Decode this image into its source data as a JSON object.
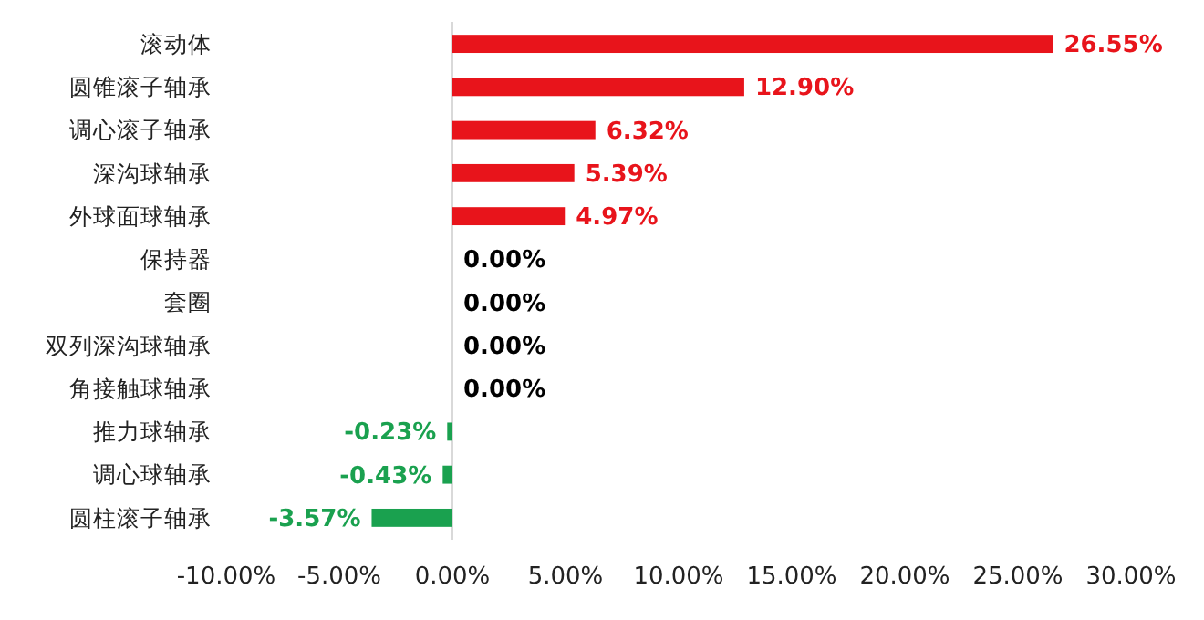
{
  "chart_data": {
    "type": "bar",
    "orientation": "horizontal",
    "categories": [
      "滚动体",
      "圆锥滚子轴承",
      "调心滚子轴承",
      "深沟球轴承",
      "外球面球轴承",
      "保持器",
      "套圈",
      "双列深沟球轴承",
      "角接触球轴承",
      "推力球轴承",
      "调心球轴承",
      "圆柱滚子轴承"
    ],
    "values": [
      26.55,
      12.9,
      6.32,
      5.39,
      4.97,
      0,
      0,
      0,
      0,
      -0.23,
      -0.43,
      -3.57
    ],
    "value_labels": [
      "26.55%",
      "12.90%",
      "6.32%",
      "5.39%",
      "4.97%",
      "0.00%",
      "0.00%",
      "0.00%",
      "0.00%",
      "-0.23%",
      "-0.43%",
      "-3.57%"
    ],
    "colors": [
      "#e8141b",
      "#e8141b",
      "#e8141b",
      "#e8141b",
      "#e8141b",
      "#000000",
      "#000000",
      "#000000",
      "#000000",
      "#1aa14f",
      "#1aa14f",
      "#1aa14f"
    ],
    "xlim": [
      -10,
      30
    ],
    "xticks": [
      {
        "value": -10,
        "label": "-10.00%"
      },
      {
        "value": -5,
        "label": "-5.00%"
      },
      {
        "value": 0,
        "label": "0.00%"
      },
      {
        "value": 5,
        "label": "5.00%"
      },
      {
        "value": 10,
        "label": "10.00%"
      },
      {
        "value": 15,
        "label": "15.00%"
      },
      {
        "value": 20,
        "label": "20.00%"
      },
      {
        "value": 25,
        "label": "25.00%"
      },
      {
        "value": 30,
        "label": "30.00%"
      }
    ],
    "data_labels": false
  }
}
